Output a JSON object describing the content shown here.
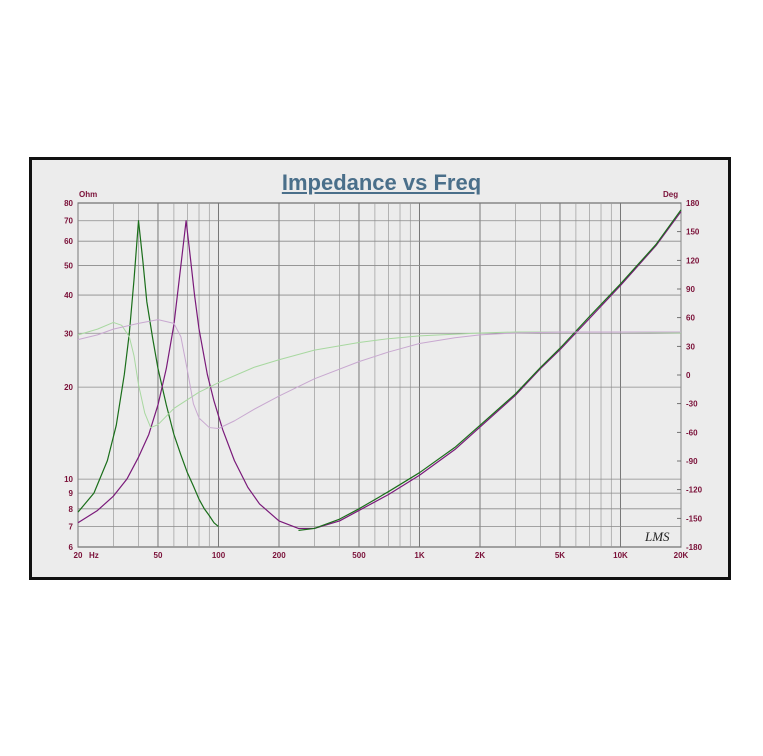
{
  "chart_data": {
    "type": "line",
    "title": "Impedance vs Freq",
    "x_scale": "log",
    "y_left_scale": "log",
    "xlim": [
      20,
      20000
    ],
    "ylim_left": [
      6,
      80
    ],
    "ylim_right": [
      -180,
      180
    ],
    "y_left_unit": "Ohm",
    "y_right_unit": "Deg",
    "x_unit": "Hz",
    "grid": true,
    "watermark": "LMS",
    "x_ticks": [
      {
        "v": 20,
        "label": "20"
      },
      {
        "v": 50,
        "label": "50"
      },
      {
        "v": 100,
        "label": "100"
      },
      {
        "v": 200,
        "label": "200"
      },
      {
        "v": 500,
        "label": "500"
      },
      {
        "v": 1000,
        "label": "1K"
      },
      {
        "v": 2000,
        "label": "2K"
      },
      {
        "v": 5000,
        "label": "5K"
      },
      {
        "v": 10000,
        "label": "10K"
      },
      {
        "v": 20000,
        "label": "20K"
      }
    ],
    "y_left_ticks": [
      {
        "v": 80,
        "label": "80"
      },
      {
        "v": 70,
        "label": "70"
      },
      {
        "v": 60,
        "label": "60"
      },
      {
        "v": 50,
        "label": "50"
      },
      {
        "v": 40,
        "label": "40"
      },
      {
        "v": 30,
        "label": "30"
      },
      {
        "v": 20,
        "label": "20"
      },
      {
        "v": 10,
        "label": "10"
      },
      {
        "v": 9,
        "label": "9"
      },
      {
        "v": 8,
        "label": "8"
      },
      {
        "v": 7,
        "label": "7"
      },
      {
        "v": 6,
        "label": "6"
      }
    ],
    "y_right_ticks": [
      {
        "v": 180,
        "label": "180"
      },
      {
        "v": 150,
        "label": "150"
      },
      {
        "v": 120,
        "label": "120"
      },
      {
        "v": 90,
        "label": "90"
      },
      {
        "v": 60,
        "label": "60"
      },
      {
        "v": 30,
        "label": "30"
      },
      {
        "v": 0,
        "label": "0"
      },
      {
        "v": -30,
        "label": "-30"
      },
      {
        "v": -60,
        "label": "-60"
      },
      {
        "v": -90,
        "label": "-90"
      },
      {
        "v": -120,
        "label": "-120"
      },
      {
        "v": -150,
        "label": "-150"
      },
      {
        "v": -180,
        "label": "-180"
      }
    ],
    "series": [
      {
        "axis": "left",
        "kind": "impedance",
        "color": "#1a6e1a",
        "points": [
          [
            20,
            7.8
          ],
          [
            24,
            9
          ],
          [
            28,
            11.5
          ],
          [
            31,
            15
          ],
          [
            34,
            22
          ],
          [
            36,
            30
          ],
          [
            38,
            45
          ],
          [
            40,
            70
          ],
          [
            42,
            52
          ],
          [
            44,
            38
          ],
          [
            47,
            29
          ],
          [
            50,
            23
          ],
          [
            55,
            17.5
          ],
          [
            60,
            14
          ],
          [
            65,
            12
          ],
          [
            70,
            10.5
          ],
          [
            75,
            9.5
          ],
          [
            80,
            8.6
          ],
          [
            85,
            8
          ],
          [
            90,
            7.6
          ],
          [
            95,
            7.2
          ],
          [
            100,
            7
          ]
        ]
      },
      {
        "axis": "left",
        "kind": "impedance",
        "color": "#7a1a7a",
        "points": [
          [
            20,
            7.2
          ],
          [
            25,
            7.9
          ],
          [
            30,
            8.8
          ],
          [
            35,
            10
          ],
          [
            40,
            11.8
          ],
          [
            45,
            14
          ],
          [
            50,
            17.5
          ],
          [
            55,
            23
          ],
          [
            60,
            32
          ],
          [
            65,
            50
          ],
          [
            69,
            70
          ],
          [
            72,
            55
          ],
          [
            76,
            40
          ],
          [
            80,
            31
          ],
          [
            88,
            22
          ],
          [
            95,
            18
          ],
          [
            105,
            14.5
          ],
          [
            120,
            11.5
          ],
          [
            140,
            9.4
          ],
          [
            160,
            8.3
          ],
          [
            200,
            7.3
          ],
          [
            250,
            6.9
          ],
          [
            300,
            6.9
          ],
          [
            400,
            7.3
          ],
          [
            500,
            7.9
          ],
          [
            700,
            8.9
          ],
          [
            1000,
            10.3
          ],
          [
            1500,
            12.5
          ],
          [
            2000,
            14.8
          ],
          [
            3000,
            18.8
          ],
          [
            4000,
            23
          ],
          [
            5000,
            26.5
          ],
          [
            7000,
            33.5
          ],
          [
            10000,
            43
          ],
          [
            15000,
            58
          ],
          [
            20000,
            75
          ]
        ]
      },
      {
        "axis": "left",
        "kind": "impedance",
        "color": "#1a6e1a",
        "points": [
          [
            250,
            6.8
          ],
          [
            300,
            6.9
          ],
          [
            400,
            7.4
          ],
          [
            500,
            8
          ],
          [
            700,
            9.1
          ],
          [
            1000,
            10.5
          ],
          [
            1500,
            12.7
          ],
          [
            2000,
            15
          ],
          [
            3000,
            19
          ],
          [
            4000,
            23.2
          ],
          [
            5000,
            26.8
          ],
          [
            7000,
            34
          ],
          [
            10000,
            43.5
          ],
          [
            15000,
            58.5
          ],
          [
            20000,
            76
          ]
        ]
      },
      {
        "axis": "right",
        "kind": "phase",
        "color": "#a8d8a0",
        "points": [
          [
            20,
            42
          ],
          [
            25,
            48
          ],
          [
            30,
            55
          ],
          [
            33,
            52
          ],
          [
            36,
            40
          ],
          [
            38,
            20
          ],
          [
            40,
            -10
          ],
          [
            43,
            -40
          ],
          [
            46,
            -55
          ],
          [
            50,
            -52
          ],
          [
            60,
            -35
          ],
          [
            80,
            -18
          ],
          [
            100,
            -8
          ],
          [
            150,
            8
          ],
          [
            200,
            16
          ],
          [
            300,
            26
          ],
          [
            500,
            34
          ],
          [
            700,
            38
          ],
          [
            1000,
            41
          ],
          [
            2000,
            44
          ],
          [
            3000,
            45
          ],
          [
            5000,
            45
          ],
          [
            10000,
            45
          ],
          [
            20000,
            44
          ]
        ]
      },
      {
        "axis": "right",
        "kind": "phase",
        "color": "#c8a8d0",
        "points": [
          [
            20,
            37
          ],
          [
            25,
            42
          ],
          [
            30,
            48
          ],
          [
            40,
            54
          ],
          [
            50,
            58
          ],
          [
            60,
            54
          ],
          [
            65,
            40
          ],
          [
            70,
            5
          ],
          [
            75,
            -30
          ],
          [
            80,
            -45
          ],
          [
            90,
            -55
          ],
          [
            100,
            -56
          ],
          [
            120,
            -48
          ],
          [
            150,
            -36
          ],
          [
            200,
            -22
          ],
          [
            300,
            -4
          ],
          [
            500,
            14
          ],
          [
            700,
            24
          ],
          [
            1000,
            33
          ],
          [
            1500,
            39
          ],
          [
            2000,
            42
          ],
          [
            3000,
            44
          ],
          [
            5000,
            45
          ],
          [
            10000,
            45
          ],
          [
            20000,
            45
          ]
        ]
      }
    ]
  }
}
